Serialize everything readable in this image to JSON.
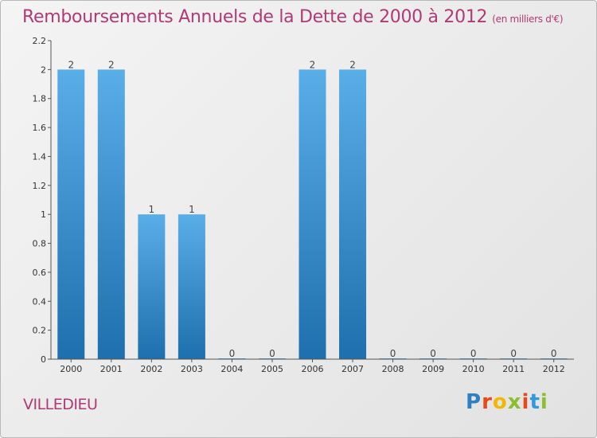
{
  "title": "Remboursements Annuels de la Dette de 2000 à 2012",
  "unit": "(en milliers d'€)",
  "commune": "VILLEDIEU",
  "logo": {
    "letters": [
      "P",
      "r",
      "o",
      "x",
      "i",
      "t",
      "i"
    ],
    "colors": [
      "#2f7fc1",
      "#e64a19",
      "#f2b705",
      "#8bbf2e",
      "#e64a19",
      "#2f9ae0",
      "#8bbf2e"
    ]
  },
  "colors": {
    "title": "#b03a75",
    "bar_top": "#5aaee8",
    "bar_bottom": "#1e6fad"
  },
  "chart_data": {
    "type": "bar",
    "categories": [
      "2000",
      "2001",
      "2002",
      "2003",
      "2004",
      "2005",
      "2006",
      "2007",
      "2008",
      "2009",
      "2010",
      "2011",
      "2012"
    ],
    "values": [
      2,
      2,
      1,
      1,
      0,
      0,
      2,
      2,
      0,
      0,
      0,
      0,
      0
    ],
    "labels": [
      "2",
      "2",
      "1",
      "1",
      "0",
      "0",
      "2",
      "2",
      "0",
      "0",
      "0",
      "0",
      "0"
    ],
    "yticks": [
      0,
      0.2,
      0.4,
      0.6,
      0.8,
      1,
      1.2,
      1.4,
      1.6,
      1.8,
      2,
      2.2
    ],
    "ytick_labels": [
      "0",
      "0.2",
      "0.4",
      "0.6",
      "0.8",
      "1",
      "1.2",
      "1.4",
      "1.6",
      "1.8",
      "2",
      "2.2"
    ],
    "ylim": [
      0,
      2.2
    ],
    "grid": false
  }
}
